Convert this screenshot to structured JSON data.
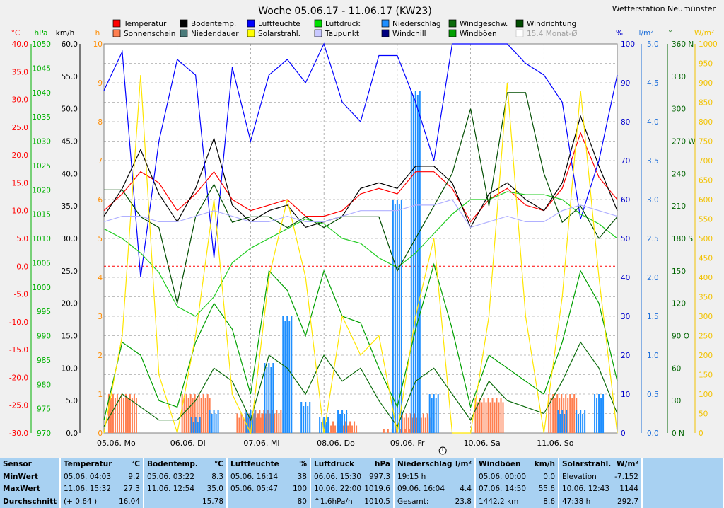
{
  "title": "Woche 05.06.17 - 11.06.17 (KW23)",
  "station": "Wetterstation Neumünster",
  "colors": {
    "plot_bg": "#ffffff",
    "grid": "#808080",
    "temp_axis": "#ff0000",
    "press_axis": "#00b000",
    "wind_axis": "#006400",
    "sun_axis": "#ff8c00",
    "humid_axis": "#0000cc",
    "rain_axis": "#1e6fd9",
    "dir_axis": "#006400",
    "solar_axis": "#f2c200"
  },
  "legend": [
    {
      "label": "Temperatur",
      "color": "#ff0000",
      "icon": "red-square-icon"
    },
    {
      "label": "Bodentemp.",
      "color": "#000000",
      "icon": "black-square-icon"
    },
    {
      "label": "Luftfeuchte",
      "color": "#0000ff",
      "icon": "blue-square-icon"
    },
    {
      "label": "Luftdruck",
      "color": "#00e000",
      "icon": "green-square-icon"
    },
    {
      "label": "Niederschlag",
      "color": "#1e8fff",
      "icon": "lightblue-square-icon"
    },
    {
      "label": "Windgeschw.",
      "color": "#0b6b0b",
      "icon": "darkgreen-square-icon"
    },
    {
      "label": "Windrichtung",
      "color": "#004d00",
      "icon": "darkgreen-square-icon"
    },
    {
      "label": "Sonnenschein",
      "color": "#ff7f50",
      "icon": "orange-square-icon"
    },
    {
      "label": "Nieder.dauer",
      "color": "#4a7a7a",
      "icon": "teal-square-icon"
    },
    {
      "label": "Solarstrahl.",
      "color": "#ffff00",
      "icon": "yellow-square-icon"
    },
    {
      "label": "Taupunkt",
      "color": "#c8c8ff",
      "icon": "lavender-square-icon"
    },
    {
      "label": "Windchill",
      "color": "#000080",
      "icon": "navy-square-icon"
    },
    {
      "label": "Windböen",
      "color": "#00a000",
      "icon": "green-square-icon"
    },
    {
      "label": "15.4 Monat-Ø",
      "color": "#d0d0d0",
      "icon": "checkbox-icon"
    }
  ],
  "axis_units": {
    "temp": "°C",
    "press": "hPa",
    "wind": "km/h",
    "sun": "h",
    "humid": "%",
    "rain": "l/m²",
    "dir": "°",
    "solar": "W/m²"
  },
  "chart_data": {
    "type": "line",
    "x_labels": [
      "05.06. Mo",
      "06.06. Di",
      "07.06. Mi",
      "08.06. Do",
      "09.06. Fr",
      "10.06. Sa",
      "11.06. So"
    ],
    "x": [
      0,
      0.25,
      0.5,
      0.75,
      1,
      1.25,
      1.5,
      1.75,
      2,
      2.25,
      2.5,
      2.75,
      3,
      3.25,
      3.5,
      3.75,
      4,
      4.25,
      4.5,
      4.75,
      5,
      5.25,
      5.5,
      5.75,
      6,
      6.25,
      6.5,
      6.75,
      7
    ],
    "axes": {
      "temp": {
        "label": "°C",
        "range": [
          -30,
          40
        ],
        "ticks": [
          "40.0",
          "35.0",
          "30.0",
          "25.0",
          "20.0",
          "15.0",
          "10.0",
          "5.0",
          "0.0",
          "-5.0",
          "-10.0",
          "-15.0",
          "-20.0",
          "-25.0",
          "-30.0"
        ]
      },
      "press": {
        "label": "hPa",
        "range": [
          970,
          1050
        ],
        "ticks": [
          "1050",
          "1045",
          "1040",
          "1035",
          "1030",
          "1025",
          "1020",
          "1015",
          "1010",
          "1005",
          "1000",
          "995",
          "990",
          "985",
          "980",
          "975",
          "970"
        ]
      },
      "wind": {
        "label": "km/h",
        "range": [
          0,
          60
        ],
        "ticks": [
          "60.0",
          "55.0",
          "50.0",
          "45.0",
          "40.0",
          "35.0",
          "30.0",
          "25.0",
          "20.0",
          "15.0",
          "10.0",
          "5.0",
          "0.0"
        ]
      },
      "sun": {
        "label": "h",
        "range": [
          0,
          10
        ],
        "ticks": [
          "10",
          "9",
          "8",
          "7",
          "6",
          "5",
          "4",
          "3",
          "2",
          "1",
          "0"
        ]
      },
      "humid": {
        "label": "%",
        "range": [
          0,
          100
        ],
        "ticks": [
          "100",
          "90",
          "80",
          "70",
          "60",
          "50",
          "40",
          "30",
          "20",
          "10",
          "0"
        ]
      },
      "rain": {
        "label": "l/m²",
        "range": [
          0,
          5
        ],
        "ticks": [
          "5.0",
          "4.5",
          "4.0",
          "3.5",
          "3.0",
          "2.5",
          "2.0",
          "1.5",
          "1.0",
          "0.5",
          "0.0"
        ]
      },
      "dir": {
        "label": "°",
        "range": [
          0,
          360
        ],
        "ticks": [
          "360 N",
          "330",
          "300",
          "270 W",
          "240",
          "210",
          "180 S",
          "150",
          "120",
          "90 O",
          "60",
          "30",
          "0 N"
        ]
      },
      "solar": {
        "label": "W/m²",
        "range": [
          0,
          1000
        ],
        "ticks": [
          "1000",
          "950",
          "900",
          "850",
          "800",
          "750",
          "700",
          "650",
          "600",
          "550",
          "500",
          "450",
          "400",
          "350",
          "300",
          "250",
          "200",
          "150",
          "100",
          "50",
          "0"
        ]
      }
    },
    "series": [
      {
        "name": "Temperatur",
        "axis": "temp",
        "color": "#ff0000",
        "values": [
          10,
          13,
          17,
          15,
          10,
          13,
          17,
          12,
          10,
          11,
          12,
          9,
          9,
          10,
          13,
          14,
          13,
          17,
          17,
          14,
          8,
          12,
          14,
          11,
          10,
          14,
          24,
          16,
          12
        ]
      },
      {
        "name": "Bodentemp.",
        "axis": "temp",
        "color": "#000000",
        "values": [
          9,
          14,
          21,
          13,
          8,
          14,
          23,
          11,
          8,
          10,
          11,
          7,
          8,
          9,
          14,
          15,
          14,
          18,
          18,
          15,
          7,
          13,
          15,
          12,
          10,
          15,
          27,
          18,
          10
        ]
      },
      {
        "name": "Luftfeuchte",
        "axis": "humid",
        "color": "#0000ff",
        "values": [
          88,
          98,
          40,
          75,
          96,
          92,
          45,
          94,
          75,
          92,
          96,
          90,
          100,
          85,
          80,
          97,
          97,
          85,
          70,
          100,
          100,
          100,
          100,
          95,
          92,
          85,
          55,
          70,
          92
        ]
      },
      {
        "name": "Luftdruck",
        "axis": "press",
        "color": "#22cc22",
        "values": [
          1012,
          1010,
          1007,
          1003,
          996,
          994,
          998,
          1005,
          1008,
          1010,
          1012,
          1014,
          1013,
          1010,
          1009,
          1006,
          1004,
          1007,
          1011,
          1015,
          1018,
          1018,
          1019.6,
          1019,
          1019,
          1018,
          1015,
          1013,
          1010
        ]
      },
      {
        "name": "Windgeschw.",
        "axis": "wind",
        "color": "#0b6b0b",
        "values": [
          1,
          6,
          4,
          2,
          2,
          5,
          10,
          8,
          2,
          12,
          10,
          6,
          12,
          8,
          10,
          5,
          1,
          8,
          10,
          6,
          2,
          8,
          5,
          4,
          3,
          8,
          14,
          10,
          3
        ]
      },
      {
        "name": "Windböen",
        "axis": "wind",
        "color": "#00a000",
        "values": [
          2,
          14,
          12,
          5,
          4,
          14,
          20,
          16,
          6,
          25,
          22,
          15,
          25,
          18,
          17,
          10,
          4,
          16,
          26,
          16,
          4,
          12,
          10,
          8,
          6,
          14,
          25,
          20,
          8
        ]
      },
      {
        "name": "Windrichtung",
        "axis": "dir",
        "color": "#004d00",
        "values": [
          225,
          225,
          200,
          190,
          120,
          200,
          230,
          195,
          200,
          200,
          190,
          200,
          190,
          200,
          200,
          200,
          150,
          180,
          210,
          240,
          300,
          210,
          315,
          315,
          240,
          195,
          210,
          180,
          200
        ]
      },
      {
        "name": "Solarstrahl.",
        "axis": "solar",
        "color": "#ffe600",
        "values": [
          0,
          250,
          920,
          150,
          0,
          250,
          600,
          100,
          0,
          400,
          600,
          400,
          0,
          300,
          200,
          250,
          0,
          300,
          500,
          0,
          0,
          300,
          900,
          300,
          0,
          350,
          880,
          400,
          0
        ]
      },
      {
        "name": "Taupunkt",
        "axis": "temp",
        "color": "#b0b0ff",
        "values": [
          8,
          9,
          9,
          8,
          8,
          9,
          10,
          9,
          8,
          8,
          9,
          8,
          8,
          9,
          10,
          10,
          10,
          11,
          11,
          12,
          7,
          8,
          9,
          8,
          8,
          10,
          11,
          10,
          9
        ]
      }
    ],
    "bars": [
      {
        "name": "Sonnenschein",
        "axis": "sun",
        "color": "#ff7f50",
        "values": [
          0,
          1.0,
          0,
          0,
          0,
          1.0,
          0,
          0,
          0.5,
          0.6,
          0,
          0,
          0,
          0.3,
          0,
          0,
          0.1,
          0.5,
          0,
          0,
          0,
          0.9,
          0,
          0,
          0,
          1.0,
          0,
          0,
          0
        ]
      },
      {
        "name": "Niederschlag",
        "axis": "rain",
        "color": "#1e8fff",
        "values": [
          0,
          0,
          0,
          0,
          0,
          0.2,
          0.3,
          0,
          0.3,
          0.9,
          1.5,
          0.4,
          0.2,
          0.3,
          0,
          0,
          3.0,
          4.4,
          0.5,
          0,
          0,
          0,
          0,
          0,
          0,
          0.3,
          0.3,
          0.5,
          0
        ]
      }
    ],
    "temp_reference_value": 0.0
  },
  "stats": {
    "row_labels": [
      "Sensor",
      "MinWert",
      "MaxWert",
      "Durchschnitt"
    ],
    "columns": [
      {
        "name": "Temperatur",
        "unit": "°C",
        "rows": [
          [
            "05.06.  04:03",
            "9.2"
          ],
          [
            "11.06.  15:32",
            "27.3"
          ],
          [
            "(+ 0.64 )",
            "16.04"
          ]
        ]
      },
      {
        "name": "Bodentemp.",
        "unit": "°C",
        "rows": [
          [
            "05.06.  03:22",
            "8.3"
          ],
          [
            "11.06.  12:54",
            "35.0"
          ],
          [
            "",
            "15.78"
          ]
        ]
      },
      {
        "name": "Luftfeuchte",
        "unit": "%",
        "rows": [
          [
            "05.06.  16:14",
            "38"
          ],
          [
            "05.06.  05:47",
            "100"
          ],
          [
            "",
            "80"
          ]
        ]
      },
      {
        "name": "Luftdruck",
        "unit": "hPa",
        "rows": [
          [
            "06.06.  15:30",
            "997.3"
          ],
          [
            "10.06.  22:00",
            "1019.6"
          ],
          [
            "^1.6hPa/h",
            "1010.5"
          ]
        ]
      },
      {
        "name": "Niederschlag",
        "unit": "l/m²",
        "rows": [
          [
            "19:15 h",
            ""
          ],
          [
            "09.06.  16:04",
            "4.4"
          ],
          [
            "Gesamt:",
            "23.8"
          ]
        ]
      },
      {
        "name": "Windböen",
        "unit": "km/h",
        "rows": [
          [
            "05.06.  00:00",
            "0.0"
          ],
          [
            "07.06.  14:50",
            "55.6"
          ],
          [
            "1442.2 km",
            "8.6"
          ]
        ]
      },
      {
        "name": "Solarstrahl.",
        "unit": "W/m²",
        "rows": [
          [
            "Elevation",
            "-7.152"
          ],
          [
            "10.06.  12:43",
            "1144"
          ],
          [
            "47:38 h",
            "292.7"
          ]
        ]
      }
    ]
  }
}
